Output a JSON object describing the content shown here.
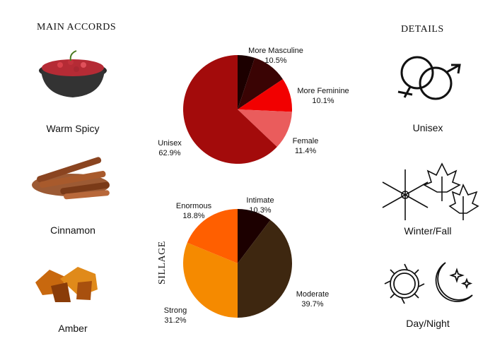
{
  "accords": {
    "title": "MAIN ACCORDS",
    "items": [
      {
        "label": "Warm Spicy",
        "icon": "pink-pepper-bowl-image"
      },
      {
        "label": "Cinnamon",
        "icon": "cinnamon-sticks-image"
      },
      {
        "label": "Amber",
        "icon": "amber-stones-image"
      }
    ]
  },
  "details": {
    "title": "DETAILS",
    "items": [
      {
        "label": "Unisex",
        "icon": "gender-symbols-icon"
      },
      {
        "label": "Winter/Fall",
        "icon": "snowflake-maple-leaf-icon"
      },
      {
        "label": "Day/Night",
        "icon": "sun-moon-icon"
      }
    ]
  },
  "chart_data": [
    {
      "type": "pie",
      "title": "",
      "slices": [
        {
          "label": "",
          "value": 5.1,
          "display": "",
          "color": "#1c0000"
        },
        {
          "label": "More Masculine",
          "value": 10.5,
          "display": "10.5%",
          "color": "#3a0404"
        },
        {
          "label": "More Feminine",
          "value": 10.1,
          "display": "10.1%",
          "color": "#f20000"
        },
        {
          "label": "Female",
          "value": 11.4,
          "display": "11.4%",
          "color": "#ea5c5c"
        },
        {
          "label": "Unisex",
          "value": 62.9,
          "display": "62.9%",
          "color": "#a30b0b"
        }
      ]
    },
    {
      "type": "pie",
      "title": "SILLAGE",
      "slices": [
        {
          "label": "Intimate",
          "value": 10.3,
          "display": "10.3%",
          "color": "#1c0000"
        },
        {
          "label": "Moderate",
          "value": 39.7,
          "display": "39.7%",
          "color": "#3e2710"
        },
        {
          "label": "Strong",
          "value": 31.2,
          "display": "31.2%",
          "color": "#f58a00"
        },
        {
          "label": "Enormous",
          "value": 18.8,
          "display": "18.8%",
          "color": "#ff5f00"
        }
      ]
    }
  ]
}
